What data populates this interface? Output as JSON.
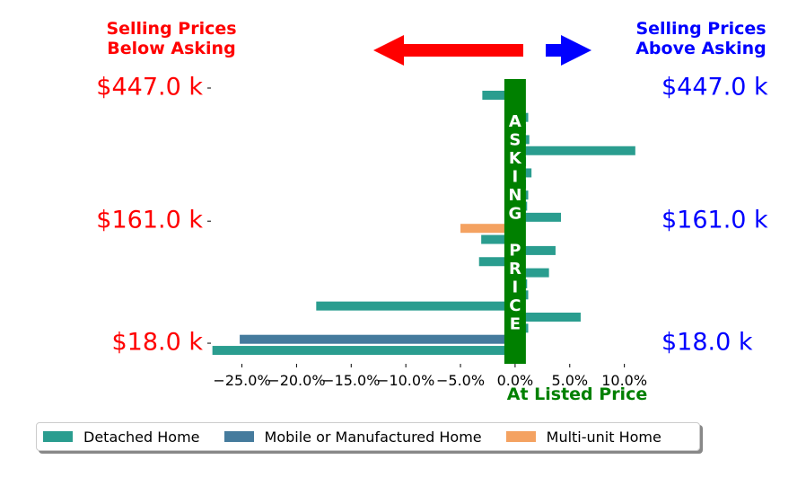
{
  "header": {
    "below_label": "Selling Prices\nBelow Asking",
    "above_label": "Selling Prices\nAbove Asking",
    "below_color": "#ff0000",
    "above_color": "#0000ff"
  },
  "asking_band": {
    "letters": [
      "A",
      "S",
      "K",
      "I",
      "N",
      "G",
      "",
      "P",
      "R",
      "I",
      "C",
      "E"
    ],
    "color": "#008000"
  },
  "at_listed_label": "At Listed Price",
  "chart_data": {
    "type": "bar",
    "orientation": "horizontal",
    "xlim": [
      -28,
      12
    ],
    "xticks": [
      -25,
      -20,
      -15,
      -10,
      -5,
      0,
      5,
      10
    ],
    "xtick_labels": [
      "−25.0%",
      "−20.0%",
      "−15.0%",
      "−10.0%",
      "−5.0%",
      "0.0%",
      "5.0%",
      "10.0%"
    ],
    "ytick_labels_left": [
      "$447.0 k",
      "$161.0 k",
      "$18.0 k"
    ],
    "ytick_labels_right": [
      "$447.0 k",
      "$161.0 k",
      "$18.0 k"
    ],
    "ytick_rows": [
      0,
      12,
      23
    ],
    "bars": [
      {
        "row": 0,
        "series": "Detached Home",
        "value": -3.0
      },
      {
        "row": 2,
        "series": "Detached Home",
        "value": 1.2
      },
      {
        "row": 3,
        "series": "Detached Home",
        "value": 1.0
      },
      {
        "row": 4,
        "series": "Detached Home",
        "value": 1.3
      },
      {
        "row": 5,
        "series": "Detached Home",
        "value": 11.0
      },
      {
        "row": 6,
        "series": "Detached Home",
        "value": 1.0
      },
      {
        "row": 7,
        "series": "Detached Home",
        "value": 1.5
      },
      {
        "row": 8,
        "series": "Detached Home",
        "value": 1.0
      },
      {
        "row": 9,
        "series": "Detached Home",
        "value": 1.2
      },
      {
        "row": 10,
        "series": "Detached Home",
        "value": 1.1
      },
      {
        "row": 11,
        "series": "Detached Home",
        "value": 4.2
      },
      {
        "row": 12,
        "series": "Multi-unit Home",
        "value": -5.0
      },
      {
        "row": 13,
        "series": "Detached Home",
        "value": -3.1
      },
      {
        "row": 14,
        "series": "Detached Home",
        "value": 3.7
      },
      {
        "row": 15,
        "series": "Detached Home",
        "value": -3.3
      },
      {
        "row": 16,
        "series": "Detached Home",
        "value": 3.1
      },
      {
        "row": 17,
        "series": "Detached Home",
        "value": 1.1
      },
      {
        "row": 18,
        "series": "Detached Home",
        "value": 1.2
      },
      {
        "row": 19,
        "series": "Detached Home",
        "value": -18.2
      },
      {
        "row": 20,
        "series": "Detached Home",
        "value": 6.0
      },
      {
        "row": 21,
        "series": "Detached Home",
        "value": 1.2
      },
      {
        "row": 22,
        "series": "Mobile or Manufactured Home",
        "value": -25.2
      },
      {
        "row": 23,
        "series": "Detached Home",
        "value": -27.7
      }
    ],
    "legend": {
      "placement": "bottom",
      "items": [
        {
          "name": "Detached Home",
          "color": "#2a9d8f"
        },
        {
          "name": "Mobile or Manufactured Home",
          "color": "#457b9d"
        },
        {
          "name": "Multi-unit Home",
          "color": "#f4a261"
        }
      ]
    }
  }
}
